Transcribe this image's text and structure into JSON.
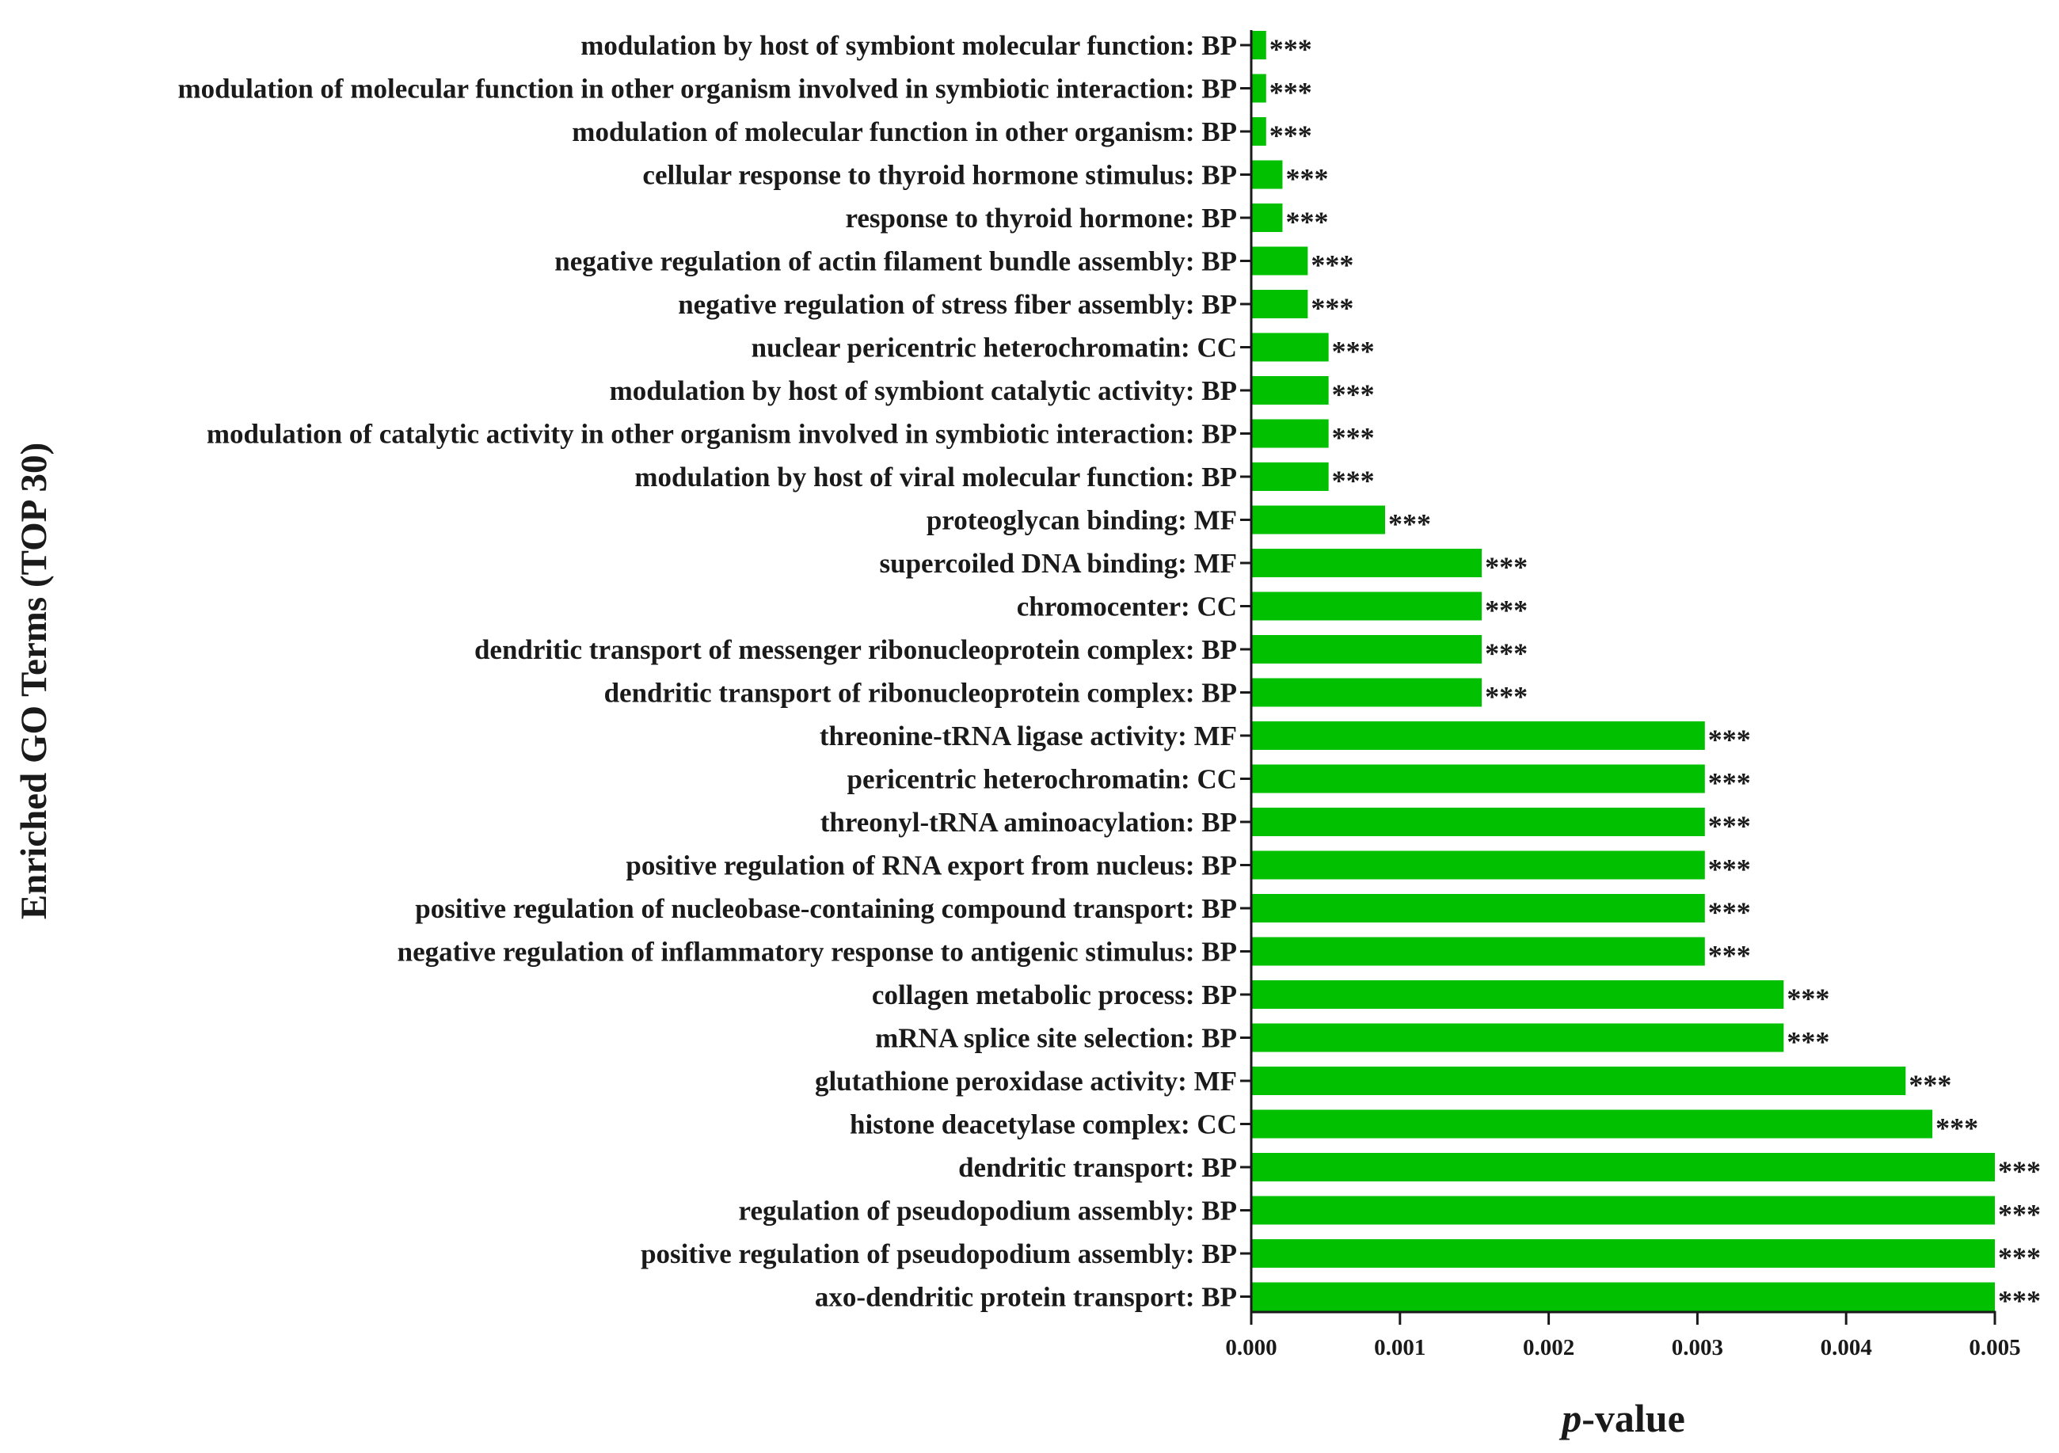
{
  "chart_data": {
    "type": "bar",
    "orientation": "horizontal",
    "bar_color": "#00c000",
    "ylabel": "Enriched GO Terms (TOP 30)",
    "xlabel_italic": "p",
    "xlabel_rest": "-value",
    "xlim": [
      0,
      0.005
    ],
    "xticks": [
      "0.000",
      "0.001",
      "0.002",
      "0.003",
      "0.004",
      "0.005"
    ],
    "significance_label": "***",
    "categories": [
      "modulation by host of symbiont molecular function: BP",
      "modulation of molecular function in other organism involved in symbiotic interaction: BP",
      "modulation of molecular function in other organism: BP",
      "cellular response to thyroid hormone stimulus: BP",
      "response to thyroid hormone: BP",
      "negative regulation of actin filament bundle assembly: BP",
      "negative regulation of stress fiber assembly: BP",
      "nuclear pericentric heterochromatin: CC",
      "modulation by host of symbiont catalytic activity: BP",
      "modulation of catalytic activity in other organism involved in symbiotic interaction: BP",
      "modulation by host of viral molecular function: BP",
      "proteoglycan binding: MF",
      "supercoiled DNA binding: MF",
      "chromocenter: CC",
      "dendritic transport of messenger ribonucleoprotein complex: BP",
      "dendritic transport of ribonucleoprotein complex: BP",
      "threonine-tRNA ligase activity: MF",
      "pericentric heterochromatin: CC",
      "threonyl-tRNA aminoacylation: BP",
      "positive regulation of RNA export from nucleus: BP",
      "positive regulation of nucleobase-containing compound transport: BP",
      "negative regulation of inflammatory response to antigenic stimulus: BP",
      "collagen metabolic process: BP",
      "mRNA splice site selection: BP",
      "glutathione peroxidase activity: MF",
      "histone deacetylase complex: CC",
      "dendritic transport: BP",
      "regulation of pseudopodium assembly: BP",
      "positive regulation of pseudopodium assembly: BP",
      "axo-dendritic protein transport: BP"
    ],
    "values": [
      0.0001,
      0.0001,
      0.0001,
      0.00021,
      0.00021,
      0.00038,
      0.00038,
      0.00052,
      0.00052,
      0.00052,
      0.00052,
      0.0009,
      0.00155,
      0.00155,
      0.00155,
      0.00155,
      0.00305,
      0.00305,
      0.00305,
      0.00305,
      0.00305,
      0.00305,
      0.00358,
      0.00358,
      0.0044,
      0.00458,
      0.005,
      0.005,
      0.005,
      0.005
    ]
  }
}
